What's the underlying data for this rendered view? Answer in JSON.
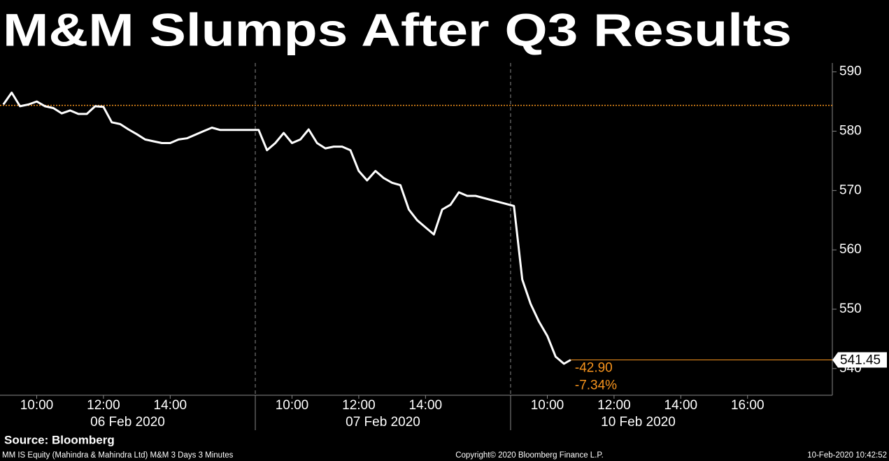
{
  "chart_data": {
    "type": "line",
    "title": "M&M Slumps After Q3 Results",
    "source": "Source: Bloomberg",
    "footer_left": "MM IS Equity (Mahindra & Mahindra Ltd) M&M 3 Days 3 Minutes",
    "footer_center": "Copyright© 2020 Bloomberg Finance L.P.",
    "footer_right": "10-Feb-2020 10:42:52",
    "sessions": [
      {
        "label": "06 Feb 2020",
        "start": "2020-02-06 08:54",
        "end": "2020-02-06 16:33"
      },
      {
        "label": "07 Feb 2020",
        "start": "2020-02-07 08:54",
        "end": "2020-02-07 16:33"
      },
      {
        "label": "10 Feb 2020",
        "start": "2020-02-10 08:54",
        "end": "2020-02-10 16:33"
      }
    ],
    "x": [
      "2020-02-06 09:00",
      "2020-02-06 09:15",
      "2020-02-06 09:30",
      "2020-02-06 09:45",
      "2020-02-06 10:00",
      "2020-02-06 10:15",
      "2020-02-06 10:30",
      "2020-02-06 10:45",
      "2020-02-06 11:00",
      "2020-02-06 11:15",
      "2020-02-06 11:30",
      "2020-02-06 11:45",
      "2020-02-06 12:00",
      "2020-02-06 12:15",
      "2020-02-06 12:30",
      "2020-02-06 12:45",
      "2020-02-06 13:00",
      "2020-02-06 13:15",
      "2020-02-06 13:30",
      "2020-02-06 13:45",
      "2020-02-06 14:00",
      "2020-02-06 14:15",
      "2020-02-06 14:30",
      "2020-02-06 14:45",
      "2020-02-06 15:00",
      "2020-02-06 15:15",
      "2020-02-06 15:30",
      "2020-02-07 09:00",
      "2020-02-07 09:15",
      "2020-02-07 09:30",
      "2020-02-07 09:45",
      "2020-02-07 10:00",
      "2020-02-07 10:15",
      "2020-02-07 10:30",
      "2020-02-07 10:45",
      "2020-02-07 11:00",
      "2020-02-07 11:15",
      "2020-02-07 11:30",
      "2020-02-07 11:45",
      "2020-02-07 12:00",
      "2020-02-07 12:15",
      "2020-02-07 12:30",
      "2020-02-07 12:45",
      "2020-02-07 13:00",
      "2020-02-07 13:15",
      "2020-02-07 13:30",
      "2020-02-07 13:45",
      "2020-02-07 14:00",
      "2020-02-07 14:15",
      "2020-02-07 14:30",
      "2020-02-07 14:45",
      "2020-02-07 15:00",
      "2020-02-07 15:15",
      "2020-02-07 15:30",
      "2020-02-10 09:00",
      "2020-02-10 09:15",
      "2020-02-10 09:30",
      "2020-02-10 09:45",
      "2020-02-10 10:00",
      "2020-02-10 10:15",
      "2020-02-10 10:30",
      "2020-02-10 10:42"
    ],
    "series": [
      {
        "name": "M&M",
        "color": "#ffffff",
        "values": [
          584.5,
          586.5,
          584.2,
          584.5,
          585.0,
          584.2,
          583.9,
          583.0,
          583.5,
          582.9,
          582.9,
          584.2,
          584.1,
          581.5,
          581.2,
          580.3,
          579.5,
          578.6,
          578.3,
          578.0,
          578.0,
          578.6,
          578.8,
          579.4,
          580.0,
          580.6,
          580.2,
          580.2,
          576.8,
          578.0,
          579.7,
          578.0,
          578.6,
          580.3,
          578.0,
          577.1,
          577.4,
          577.4,
          576.8,
          573.3,
          571.7,
          573.3,
          572.1,
          571.3,
          570.9,
          566.8,
          565.0,
          563.8,
          562.6,
          566.8,
          567.6,
          569.7,
          569.1,
          569.1,
          567.4,
          555.0,
          550.9,
          547.9,
          545.5,
          542.0,
          540.8,
          541.45
        ]
      }
    ],
    "reference": {
      "value": 584.35,
      "color": "#f7941d"
    },
    "change": {
      "value": -42.9,
      "label": "-42.90"
    },
    "change_pct": {
      "value": -7.34,
      "label": "-7.34%"
    },
    "ylim": [
      535.5,
      591.5
    ],
    "yticks": [
      540,
      550,
      560,
      570,
      580,
      590
    ],
    "xticks": [
      {
        "value": "2020-02-06 10:00",
        "label": "10:00"
      },
      {
        "value": "2020-02-06 12:00",
        "label": "12:00"
      },
      {
        "value": "2020-02-06 14:00",
        "label": "14:00"
      },
      {
        "value": "2020-02-07 10:00",
        "label": "10:00"
      },
      {
        "value": "2020-02-07 12:00",
        "label": "12:00"
      },
      {
        "value": "2020-02-07 14:00",
        "label": "14:00"
      },
      {
        "value": "2020-02-10 10:00",
        "label": "10:00"
      },
      {
        "value": "2020-02-10 12:00",
        "label": "12:00"
      },
      {
        "value": "2020-02-10 14:00",
        "label": "14:00"
      },
      {
        "value": "2020-02-10 16:00",
        "label": "16:00"
      }
    ]
  }
}
